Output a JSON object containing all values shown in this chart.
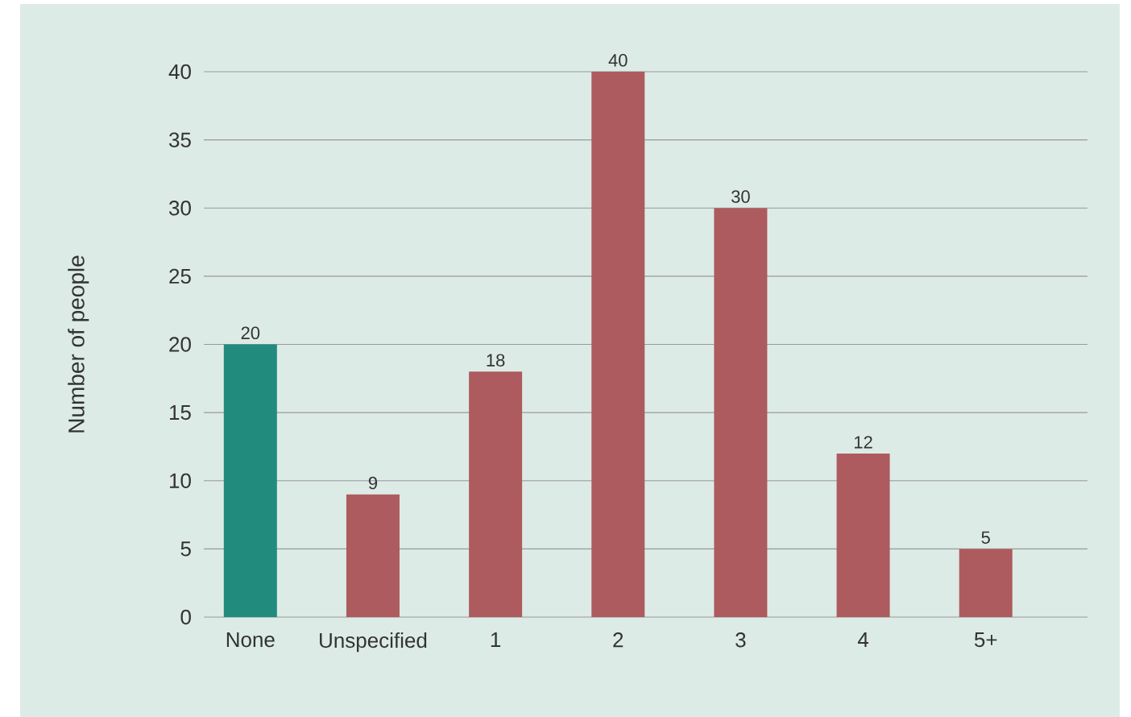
{
  "chart_data": {
    "type": "bar",
    "ylabel": "Number of people",
    "categories": [
      "None",
      "Unspecified",
      "1",
      "2",
      "3",
      "4",
      "5+"
    ],
    "values": [
      20,
      9,
      18,
      40,
      30,
      12,
      5
    ],
    "colors": [
      "#218c7e",
      "#ad5b5e",
      "#ad5b5e",
      "#ad5b5e",
      "#ad5b5e",
      "#ad5b5e",
      "#ad5b5e"
    ],
    "ylim": [
      0,
      40
    ],
    "yticks": [
      0,
      5,
      10,
      15,
      20,
      25,
      30,
      35,
      40
    ],
    "grid": "y",
    "data_labels": true
  }
}
